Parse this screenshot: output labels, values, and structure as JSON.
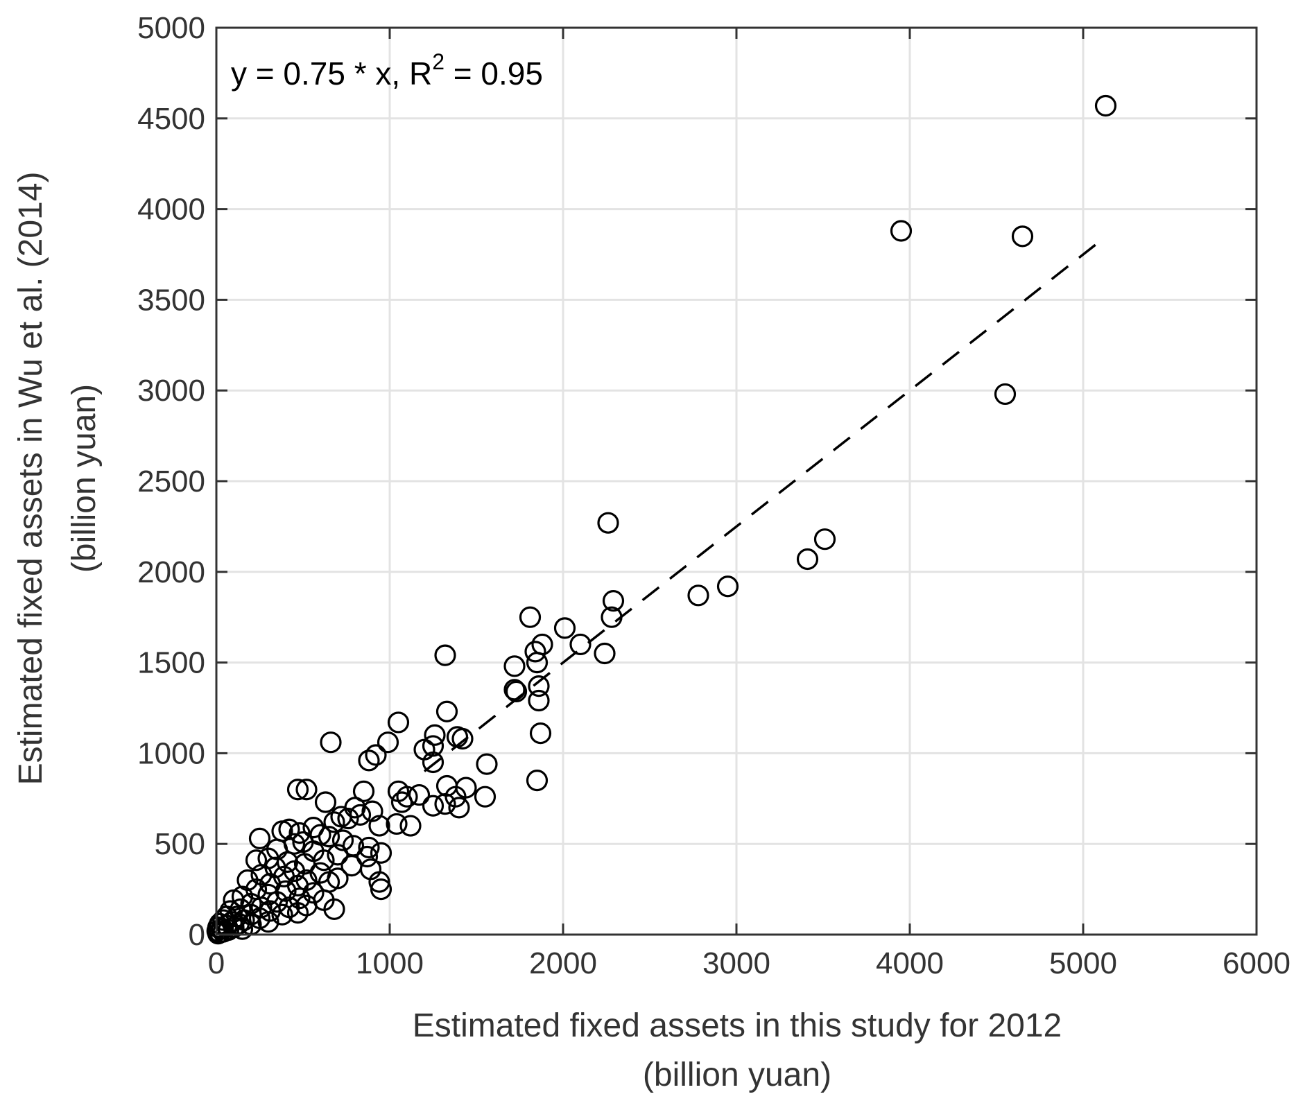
{
  "chart_data": {
    "type": "scatter",
    "title": "",
    "xlabel": [
      "Estimated fixed assets in this study for 2012",
      "(billion yuan)"
    ],
    "ylabel": [
      "Estimated fixed assets in Wu et al. (2014)",
      "(billion yuan)"
    ],
    "xlim": [
      0,
      6000
    ],
    "ylim": [
      0,
      5000
    ],
    "xticks": [
      0,
      1000,
      2000,
      3000,
      4000,
      5000,
      6000
    ],
    "yticks": [
      0,
      500,
      1000,
      1500,
      2000,
      2500,
      3000,
      3500,
      4000,
      4500,
      5000
    ],
    "grid": true,
    "annotation": {
      "pre": "y = 0.75 * x, R",
      "sup": "2",
      "post": " = 0.95"
    },
    "fit_line": {
      "slope": 0.75,
      "intercept": 0,
      "x_range": [
        1200,
        5100
      ],
      "style": "dashed",
      "color": "#000000"
    },
    "marker": {
      "shape": "circle",
      "fill": "none",
      "edge_color": "#000000"
    },
    "series": [
      {
        "points": [
          [
            5130,
            4570
          ],
          [
            3950,
            3880
          ],
          [
            4650,
            3850
          ],
          [
            4550,
            2980
          ],
          [
            2260,
            2270
          ],
          [
            3510,
            2180
          ],
          [
            3410,
            2070
          ],
          [
            2950,
            1920
          ],
          [
            2780,
            1870
          ],
          [
            2290,
            1840
          ],
          [
            2280,
            1750
          ],
          [
            1810,
            1750
          ],
          [
            2010,
            1690
          ],
          [
            2100,
            1600
          ],
          [
            1880,
            1600
          ],
          [
            1840,
            1560
          ],
          [
            2240,
            1550
          ],
          [
            1320,
            1540
          ],
          [
            1850,
            1500
          ],
          [
            1720,
            1480
          ],
          [
            1860,
            1370
          ],
          [
            1720,
            1350
          ],
          [
            1730,
            1340
          ],
          [
            1860,
            1290
          ],
          [
            1330,
            1230
          ],
          [
            1050,
            1170
          ],
          [
            1870,
            1110
          ],
          [
            1260,
            1100
          ],
          [
            1390,
            1090
          ],
          [
            1420,
            1080
          ],
          [
            660,
            1060
          ],
          [
            990,
            1060
          ],
          [
            1250,
            1040
          ],
          [
            1200,
            1020
          ],
          [
            920,
            990
          ],
          [
            880,
            960
          ],
          [
            1250,
            950
          ],
          [
            1560,
            940
          ],
          [
            1850,
            850
          ],
          [
            1330,
            820
          ],
          [
            1440,
            810
          ],
          [
            470,
            800
          ],
          [
            520,
            800
          ],
          [
            1050,
            790
          ],
          [
            850,
            790
          ],
          [
            1170,
            770
          ],
          [
            1100,
            760
          ],
          [
            1550,
            760
          ],
          [
            1380,
            760
          ],
          [
            630,
            730
          ],
          [
            1070,
            730
          ],
          [
            1320,
            720
          ],
          [
            1250,
            710
          ],
          [
            1400,
            700
          ],
          [
            800,
            700
          ],
          [
            900,
            680
          ],
          [
            830,
            660
          ],
          [
            720,
            650
          ],
          [
            760,
            640
          ],
          [
            680,
            620
          ],
          [
            1040,
            610
          ],
          [
            1120,
            600
          ],
          [
            940,
            600
          ],
          [
            560,
            590
          ],
          [
            420,
            580
          ],
          [
            380,
            570
          ],
          [
            480,
            560
          ],
          [
            600,
            550
          ],
          [
            650,
            540
          ],
          [
            250,
            530
          ],
          [
            730,
            520
          ],
          [
            500,
            510
          ],
          [
            450,
            500
          ],
          [
            790,
            490
          ],
          [
            880,
            480
          ],
          [
            350,
            470
          ],
          [
            560,
            460
          ],
          [
            950,
            450
          ],
          [
            700,
            440
          ],
          [
            870,
            430
          ],
          [
            300,
            420
          ],
          [
            620,
            410
          ],
          [
            230,
            410
          ],
          [
            410,
            400
          ],
          [
            510,
            390
          ],
          [
            780,
            380
          ],
          [
            340,
            370
          ],
          [
            890,
            360
          ],
          [
            450,
            350
          ],
          [
            600,
            340
          ],
          [
            260,
            330
          ],
          [
            390,
            320
          ],
          [
            700,
            310
          ],
          [
            520,
            300
          ],
          [
            180,
            300
          ],
          [
            650,
            290
          ],
          [
            940,
            290
          ],
          [
            310,
            280
          ],
          [
            470,
            270
          ],
          [
            950,
            250
          ],
          [
            230,
            250
          ],
          [
            400,
            240
          ],
          [
            560,
            230
          ],
          [
            300,
            220
          ],
          [
            150,
            210
          ],
          [
            480,
            200
          ],
          [
            620,
            190
          ],
          [
            100,
            190
          ],
          [
            350,
            180
          ],
          [
            200,
            170
          ],
          [
            520,
            160
          ],
          [
            260,
            150
          ],
          [
            420,
            150
          ],
          [
            680,
            140
          ],
          [
            140,
            140
          ],
          [
            310,
            130
          ],
          [
            80,
            130
          ],
          [
            470,
            120
          ],
          [
            200,
            110
          ],
          [
            380,
            110
          ],
          [
            60,
            100
          ],
          [
            120,
            100
          ],
          [
            250,
            90
          ],
          [
            160,
            80
          ],
          [
            40,
            80
          ],
          [
            90,
            70
          ],
          [
            300,
            70
          ],
          [
            20,
            60
          ],
          [
            130,
            60
          ],
          [
            200,
            55
          ],
          [
            60,
            50
          ],
          [
            10,
            40
          ],
          [
            100,
            40
          ],
          [
            30,
            30
          ],
          [
            150,
            30
          ],
          [
            70,
            25
          ],
          [
            5,
            20
          ],
          [
            40,
            15
          ],
          [
            20,
            10
          ],
          [
            10,
            5
          ]
        ]
      }
    ]
  }
}
